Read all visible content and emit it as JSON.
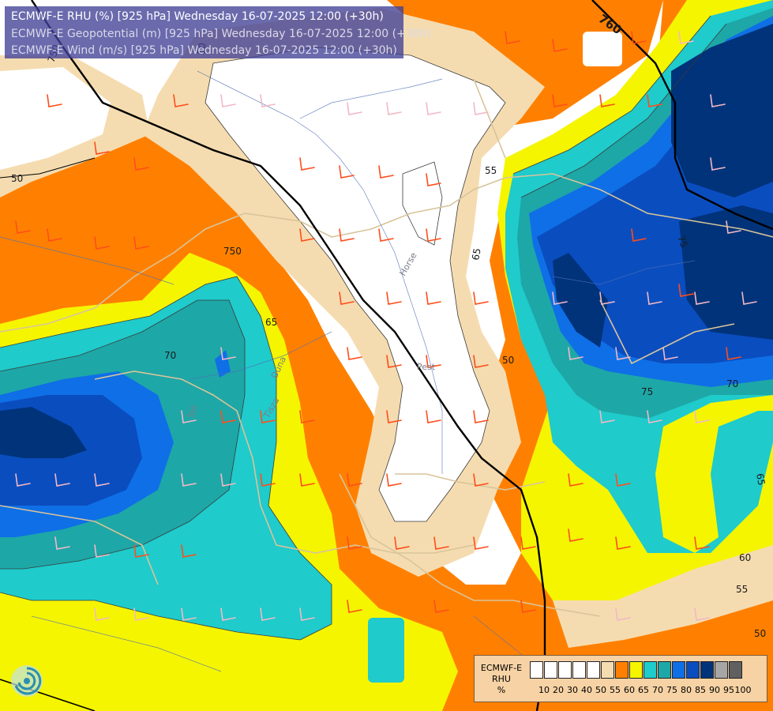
{
  "header": {
    "line1": "ECMWF-E RHU (%) [925 hPa] Wednesday 16-07-2025 12:00 (+30h)",
    "line2": "ECMWF-E Geopotential (m) [925 hPa] Wednesday 16-07-2025 12:00 (+30h)",
    "line3": "ECMWF-E Wind (m/s) [925 hPa] Wednesday 16-07-2025 12:00 (+30h)"
  },
  "legend": {
    "title": "ECMWF-E\nRHU\n%",
    "title_line1": "ECMWF-E",
    "title_line2": "RHU",
    "title_line3": "%",
    "ticks": [
      "10",
      "20",
      "30",
      "40",
      "50",
      "55",
      "60",
      "65",
      "70",
      "75",
      "80",
      "85",
      "90",
      "95",
      "100"
    ],
    "colors": [
      "#ffffff",
      "#ffffff",
      "#ffffff",
      "#ffffff",
      "#ffffff",
      "#f5dcb0",
      "#ff8000",
      "#f5f500",
      "#1fcbcb",
      "#1ea7a7",
      "#0f6fe6",
      "#0a4dbf",
      "#00337a",
      "#a6a6a6",
      "#606060"
    ]
  },
  "contour_labels": {
    "geopotential": [
      "760",
      "750",
      "750",
      "50",
      "50",
      "50"
    ],
    "rhu": [
      "55",
      "65",
      "70",
      "75",
      "70",
      "65",
      "60",
      "55",
      "50",
      "75",
      "65"
    ]
  },
  "place_labels": [
    "Horse",
    "Tisza",
    "Pest",
    "Sió",
    "Duna"
  ],
  "colors": {
    "white": "#ffffff",
    "tan": "#f5dcb0",
    "orange": "#ff8000",
    "yellow": "#f5f500",
    "cyan": "#1fcbcb",
    "teal": "#1ea7a7",
    "blue1": "#0f6fe6",
    "blue2": "#0a4dbf",
    "navy": "#00337a",
    "header_bg": "#404096",
    "legend_bg": "#f6d2a4"
  }
}
